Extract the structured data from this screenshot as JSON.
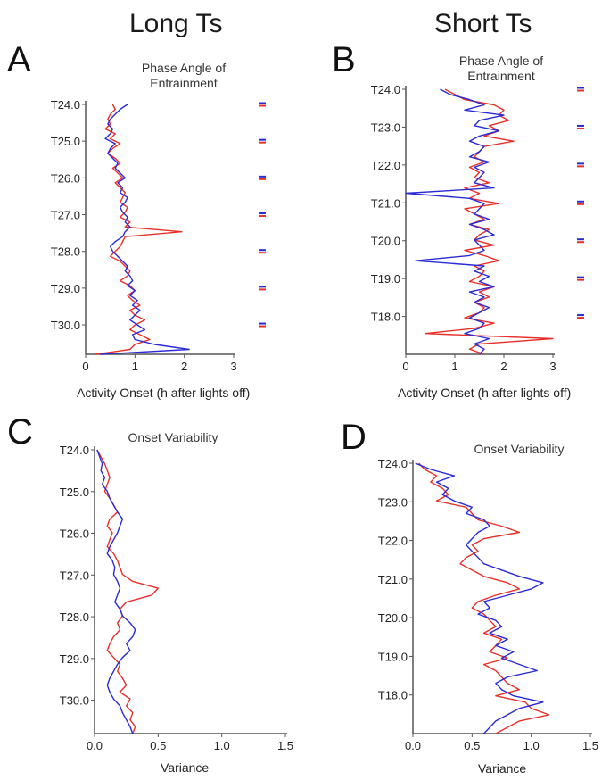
{
  "headers": {
    "left": "Long Ts",
    "right": "Short Ts"
  },
  "colors": {
    "series_red": "#e8302a",
    "series_blue": "#2b2bd6",
    "axis": "#555555"
  },
  "panels": {
    "A": {
      "letter": "A",
      "title_line1": "Phase Angle of",
      "title_line2": "Entrainment",
      "xlabel": "Activity Onset (h after lights off)"
    },
    "B": {
      "letter": "B",
      "title_line1": "Phase Angle of",
      "title_line2": "Entrainment",
      "xlabel": "Activity Onset (h after lights off)"
    },
    "C": {
      "letter": "C",
      "title_line1": "Onset Variability",
      "title_line2": "",
      "xlabel": "Variance"
    },
    "D": {
      "letter": "D",
      "title_line1": "Onset Variability",
      "title_line2": "",
      "xlabel": "Variance"
    }
  },
  "chart_data": [
    {
      "panel": "A",
      "type": "line",
      "orientation": "vertical",
      "xlabel": "Activity Onset (h after lights off)",
      "xlim": [
        0,
        3
      ],
      "x_ticks": [
        "0",
        "1",
        "2",
        "3"
      ],
      "ylim": [
        24.0,
        30.8
      ],
      "y_inverted": true,
      "y_ticks": [
        "T24.0",
        "T25.0",
        "T26.0",
        "T27.0",
        "T28.0",
        "T29.0",
        "T30.0"
      ],
      "y_tick_values": [
        24.0,
        25.0,
        26.0,
        27.0,
        28.0,
        29.0,
        30.0
      ],
      "series": [
        {
          "color": "red",
          "y_start": 24.0,
          "y_end": 30.8,
          "values": [
            0.55,
            0.6,
            0.5,
            0.45,
            0.5,
            0.4,
            0.6,
            0.5,
            0.7,
            0.55,
            0.45,
            0.6,
            0.7,
            0.55,
            0.65,
            0.75,
            0.6,
            0.7,
            0.8,
            0.75,
            0.7,
            0.85,
            0.8,
            0.7,
            0.9,
            0.8,
            1.95,
            0.8,
            0.75,
            0.7,
            0.6,
            0.5,
            0.7,
            0.8,
            0.9,
            0.85,
            0.7,
            0.9,
            1.0,
            0.85,
            0.95,
            1.1,
            0.9,
            1.0,
            1.2,
            1.0,
            0.9,
            1.1,
            1.3,
            1.0,
            0.9,
            0.2
          ]
        },
        {
          "color": "blue",
          "y_start": 24.0,
          "y_end": 30.8,
          "values": [
            0.85,
            0.7,
            0.6,
            0.5,
            0.45,
            0.55,
            0.5,
            0.4,
            0.6,
            0.5,
            0.45,
            0.55,
            0.65,
            0.6,
            0.7,
            0.8,
            0.65,
            0.75,
            0.7,
            0.85,
            0.8,
            0.7,
            0.75,
            0.85,
            0.8,
            0.9,
            0.8,
            0.75,
            0.6,
            0.5,
            0.55,
            0.65,
            0.75,
            0.85,
            0.8,
            0.9,
            0.95,
            0.85,
            1.0,
            0.9,
            1.05,
            0.95,
            1.1,
            1.0,
            0.9,
            1.05,
            1.2,
            0.95,
            1.0,
            1.4,
            2.1,
            0.3
          ]
        }
      ],
      "phase_markers": [
        24.0,
        25.0,
        26.0,
        27.0,
        28.0,
        29.0,
        30.0
      ]
    },
    {
      "panel": "B",
      "type": "line",
      "orientation": "vertical",
      "xlabel": "Activity Onset (h after lights off)",
      "xlim": [
        0,
        3
      ],
      "x_ticks": [
        "0",
        "1",
        "2",
        "3"
      ],
      "ylim": [
        24.0,
        17.0
      ],
      "y_inverted": true,
      "y_ticks": [
        "T24.0",
        "T23.0",
        "T22.0",
        "T21.0",
        "T20.0",
        "T19.0",
        "T18.0"
      ],
      "y_tick_values": [
        24.0,
        23.0,
        22.0,
        21.0,
        20.0,
        19.0,
        18.0
      ],
      "series": [
        {
          "color": "red",
          "y_start": 24.0,
          "y_end": 17.0,
          "values": [
            0.8,
            1.0,
            1.2,
            1.8,
            2.0,
            1.9,
            2.1,
            1.7,
            1.9,
            1.6,
            2.2,
            1.6,
            1.5,
            1.4,
            1.6,
            1.3,
            1.5,
            1.4,
            1.7,
            1.2,
            1.5,
            1.3,
            1.9,
            1.2,
            1.4,
            1.6,
            1.3,
            1.7,
            1.5,
            1.4,
            1.8,
            1.2,
            1.6,
            1.9,
            1.4,
            1.6,
            1.5,
            1.3,
            1.8,
            1.5,
            1.7,
            1.4,
            1.6,
            1.5,
            1.2,
            1.8,
            1.4,
            0.4,
            3.0,
            1.5,
            1.3,
            1.6
          ]
        },
        {
          "color": "blue",
          "y_start": 24.0,
          "y_end": 17.0,
          "values": [
            0.7,
            0.9,
            1.3,
            1.6,
            1.2,
            2.0,
            1.5,
            1.4,
            1.9,
            1.5,
            1.3,
            1.6,
            1.5,
            1.3,
            1.7,
            1.4,
            1.6,
            1.5,
            1.4,
            1.8,
            0.0,
            1.3,
            1.6,
            1.5,
            1.4,
            1.7,
            1.3,
            1.6,
            1.8,
            1.4,
            1.5,
            1.6,
            1.3,
            0.2,
            1.6,
            1.4,
            1.7,
            1.5,
            1.8,
            1.3,
            1.6,
            1.4,
            1.7,
            1.5,
            1.3,
            1.6,
            1.5,
            1.2,
            1.7,
            1.4,
            1.6,
            1.5
          ]
        }
      ],
      "phase_markers": [
        24.0,
        23.0,
        22.0,
        21.0,
        20.0,
        19.0,
        18.0
      ]
    },
    {
      "panel": "C",
      "type": "line",
      "orientation": "vertical",
      "xlabel": "Variance",
      "xlim": [
        0,
        1.5
      ],
      "x_ticks": [
        "0.0",
        "0.5",
        "1.0",
        "1.5"
      ],
      "ylim": [
        24.0,
        30.8
      ],
      "y_inverted": true,
      "y_ticks": [
        "T24.0",
        "T25.0",
        "T26.0",
        "T27.0",
        "T28.0",
        "T29.0",
        "T30.0"
      ],
      "y_tick_values": [
        24.0,
        25.0,
        26.0,
        27.0,
        28.0,
        29.0,
        30.0
      ],
      "series": [
        {
          "color": "red",
          "y_start": 24.0,
          "y_end": 30.8,
          "values": [
            0.02,
            0.05,
            0.08,
            0.1,
            0.12,
            0.1,
            0.08,
            0.12,
            0.15,
            0.18,
            0.12,
            0.1,
            0.14,
            0.12,
            0.1,
            0.15,
            0.18,
            0.2,
            0.22,
            0.3,
            0.5,
            0.45,
            0.25,
            0.2,
            0.22,
            0.18,
            0.2,
            0.15,
            0.12,
            0.1,
            0.15,
            0.2,
            0.18,
            0.22,
            0.25,
            0.2,
            0.28,
            0.25,
            0.3,
            0.28,
            0.32,
            0.3
          ]
        },
        {
          "color": "blue",
          "y_start": 24.0,
          "y_end": 30.8,
          "values": [
            0.02,
            0.04,
            0.06,
            0.05,
            0.08,
            0.06,
            0.1,
            0.12,
            0.15,
            0.18,
            0.22,
            0.2,
            0.18,
            0.15,
            0.12,
            0.1,
            0.14,
            0.16,
            0.15,
            0.18,
            0.2,
            0.18,
            0.16,
            0.2,
            0.22,
            0.28,
            0.32,
            0.3,
            0.25,
            0.28,
            0.22,
            0.18,
            0.15,
            0.12,
            0.1,
            0.12,
            0.15,
            0.2,
            0.22,
            0.25,
            0.28,
            0.3
          ]
        }
      ]
    },
    {
      "panel": "D",
      "type": "line",
      "orientation": "vertical",
      "xlabel": "Variance",
      "xlim": [
        0,
        1.5
      ],
      "x_ticks": [
        "0.0",
        "0.5",
        "1.0",
        "1.5"
      ],
      "ylim": [
        24.0,
        17.0
      ],
      "y_inverted": true,
      "y_ticks": [
        "T24.0",
        "T23.0",
        "T22.0",
        "T21.0",
        "T20.0",
        "T19.0",
        "T18.0"
      ],
      "y_tick_values": [
        24.0,
        23.0,
        22.0,
        21.0,
        20.0,
        19.0,
        18.0
      ],
      "series": [
        {
          "color": "red",
          "y_start": 24.0,
          "y_end": 17.0,
          "values": [
            0.05,
            0.1,
            0.2,
            0.15,
            0.25,
            0.3,
            0.2,
            0.45,
            0.5,
            0.55,
            0.75,
            0.9,
            0.6,
            0.5,
            0.55,
            0.45,
            0.4,
            0.5,
            0.6,
            0.8,
            0.9,
            0.7,
            0.55,
            0.5,
            0.6,
            0.65,
            0.7,
            0.6,
            0.75,
            0.7,
            0.65,
            0.8,
            0.6,
            0.7,
            0.75,
            0.8,
            0.9,
            0.7,
            0.95,
            1.0,
            1.15,
            0.9,
            0.8,
            0.7
          ]
        },
        {
          "color": "blue",
          "y_start": 24.0,
          "y_end": 17.0,
          "values": [
            0.02,
            0.15,
            0.35,
            0.2,
            0.3,
            0.25,
            0.35,
            0.5,
            0.45,
            0.6,
            0.65,
            0.55,
            0.5,
            0.45,
            0.5,
            0.55,
            0.6,
            0.75,
            0.9,
            1.1,
            1.0,
            0.8,
            0.6,
            0.65,
            0.55,
            0.7,
            0.75,
            0.65,
            0.8,
            0.7,
            0.85,
            0.75,
            0.9,
            1.05,
            0.8,
            0.7,
            0.75,
            0.85,
            1.1,
            0.9,
            0.8,
            0.7,
            0.65,
            0.6
          ]
        }
      ]
    }
  ]
}
